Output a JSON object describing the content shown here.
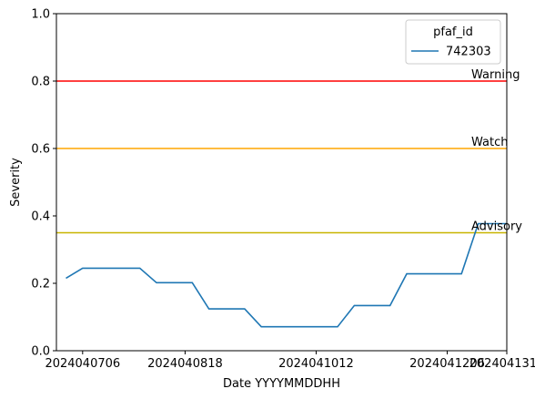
{
  "chart_data": {
    "type": "line",
    "xlabel": "Date YYYYMMDDHH",
    "ylabel": "Severity",
    "ylim": [
      0,
      1
    ],
    "yticks": [
      "0.0",
      "0.2",
      "0.4",
      "0.6",
      "0.8",
      "1.0"
    ],
    "ytick_values": [
      0,
      0.2,
      0.4,
      0.6,
      0.8,
      1.0
    ],
    "x_range": [
      "2024-06-25",
      "2024-12-31"
    ],
    "xticks": [
      {
        "label": "2024040706",
        "date": "2024-07-06"
      },
      {
        "label": "2024040818",
        "date": "2024-08-18"
      },
      {
        "label": "2024041012",
        "date": "2024-10-12"
      },
      {
        "label": "2024041206",
        "date": "2024-12-06"
      },
      {
        "label": "2024041312",
        "date": "2024-12-31"
      }
    ],
    "legend": {
      "title": "pfaf_id",
      "placement": "top-right"
    },
    "series": [
      {
        "name": "742303",
        "color": "#1f77b4",
        "points": [
          {
            "x": "2024-06-29",
            "y": 0.215
          },
          {
            "x": "2024-07-06",
            "y": 0.245
          },
          {
            "x": "2024-07-30",
            "y": 0.245
          },
          {
            "x": "2024-08-06",
            "y": 0.202
          },
          {
            "x": "2024-08-21",
            "y": 0.202
          },
          {
            "x": "2024-08-28",
            "y": 0.124
          },
          {
            "x": "2024-09-12",
            "y": 0.124
          },
          {
            "x": "2024-09-19",
            "y": 0.071
          },
          {
            "x": "2024-10-21",
            "y": 0.071
          },
          {
            "x": "2024-10-28",
            "y": 0.134
          },
          {
            "x": "2024-11-12",
            "y": 0.134
          },
          {
            "x": "2024-11-19",
            "y": 0.228
          },
          {
            "x": "2024-12-12",
            "y": 0.228
          },
          {
            "x": "2024-12-19",
            "y": 0.377
          },
          {
            "x": "2024-12-31",
            "y": 0.377
          }
        ]
      }
    ],
    "thresholds": [
      {
        "label": "Warning",
        "y": 0.8,
        "color": "#ff0000"
      },
      {
        "label": "Watch",
        "y": 0.6,
        "color": "#ffa500"
      },
      {
        "label": "Advisory",
        "y": 0.35,
        "color": "#c8b400"
      }
    ],
    "grid": false
  }
}
